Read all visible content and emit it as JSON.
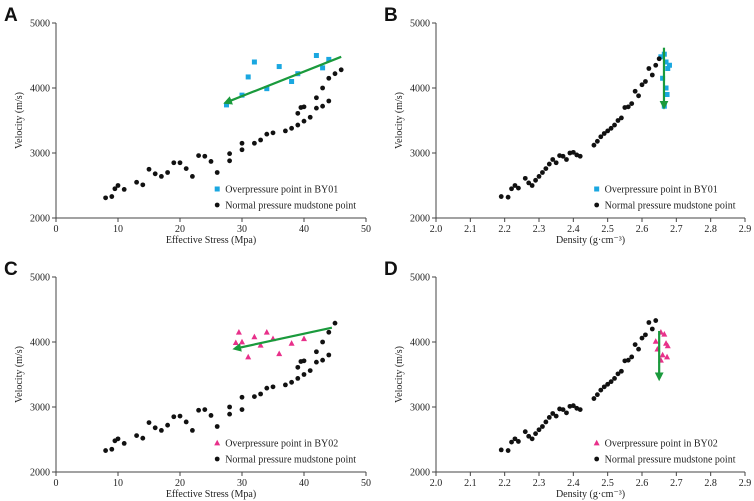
{
  "chart_data": [
    {
      "panel": "A",
      "type": "scatter",
      "xlabel": "Effective Stress (Mpa)",
      "ylabel": "Velocity (m/s)",
      "xlim": [
        0,
        50
      ],
      "ylim": [
        2000,
        5000
      ],
      "xticks": [
        "0",
        "10",
        "20",
        "30",
        "40",
        "50"
      ],
      "yticks": [
        "2000",
        "3000",
        "4000",
        "5000"
      ],
      "legend": "bottom-right",
      "arrow": {
        "from": [
          46,
          4480
        ],
        "to": [
          27.5,
          3780
        ],
        "color": "#1a9a3c"
      },
      "series": [
        {
          "name": "Overpressure point in BY01",
          "marker": "square",
          "color": "#1aa7e0",
          "x": [
            27.5,
            30,
            31,
            32,
            34,
            36,
            38,
            39,
            42,
            43,
            44
          ],
          "y": [
            3740,
            3890,
            4170,
            4400,
            3990,
            4330,
            4100,
            4220,
            4500,
            4310,
            4440
          ]
        },
        {
          "name": "Normal pressure mudstone point",
          "marker": "circle",
          "color": "#111111",
          "x": [
            8,
            9,
            9.5,
            10,
            11,
            13,
            14,
            15,
            16,
            17,
            18,
            19,
            20,
            21,
            22,
            23,
            24,
            25,
            26,
            28,
            28,
            30,
            30,
            32,
            33,
            34,
            35,
            37,
            38,
            39,
            39,
            39.5,
            40,
            40,
            41,
            42,
            42,
            43,
            43,
            44,
            44,
            45,
            46
          ],
          "y": [
            2310,
            2330,
            2450,
            2500,
            2440,
            2550,
            2510,
            2750,
            2680,
            2640,
            2700,
            2850,
            2850,
            2760,
            2640,
            2960,
            2950,
            2870,
            2700,
            2880,
            2990,
            3050,
            3150,
            3150,
            3200,
            3290,
            3310,
            3340,
            3380,
            3430,
            3610,
            3700,
            3710,
            3490,
            3550,
            3690,
            3850,
            3720,
            4000,
            3800,
            4150,
            4220,
            4280
          ]
        }
      ]
    },
    {
      "panel": "B",
      "type": "scatter",
      "xlabel": "Density (g·cm⁻³)",
      "ylabel": "Velocity (m/s)",
      "xlim": [
        2.0,
        2.9
      ],
      "ylim": [
        2000,
        5000
      ],
      "xticks": [
        "2.0",
        "2.1",
        "2.2",
        "2.3",
        "2.4",
        "2.5",
        "2.6",
        "2.7",
        "2.8",
        "2.9"
      ],
      "yticks": [
        "2000",
        "3000",
        "4000",
        "5000"
      ],
      "legend": "bottom-right",
      "arrow": {
        "from": [
          2.664,
          4620
        ],
        "to": [
          2.664,
          3720
        ],
        "color": "#1a9a3c"
      },
      "series": [
        {
          "name": "Overpressure point in BY01",
          "marker": "square",
          "color": "#1aa7e0",
          "x": [
            2.655,
            2.665,
            2.67,
            2.675,
            2.68,
            2.66,
            2.67,
            2.665,
            2.673
          ],
          "y": [
            4480,
            4520,
            4400,
            4300,
            4350,
            4150,
            4000,
            3720,
            3900
          ]
        },
        {
          "name": "Normal pressure mudstone point",
          "marker": "circle",
          "color": "#111111",
          "x": [
            2.19,
            2.21,
            2.22,
            2.23,
            2.24,
            2.26,
            2.27,
            2.28,
            2.29,
            2.3,
            2.31,
            2.32,
            2.33,
            2.34,
            2.35,
            2.36,
            2.37,
            2.38,
            2.39,
            2.4,
            2.41,
            2.42,
            2.46,
            2.47,
            2.48,
            2.49,
            2.5,
            2.51,
            2.52,
            2.53,
            2.54,
            2.55,
            2.56,
            2.57,
            2.58,
            2.59,
            2.6,
            2.61,
            2.62,
            2.63,
            2.64,
            2.65
          ],
          "y": [
            2330,
            2320,
            2450,
            2500,
            2460,
            2610,
            2540,
            2500,
            2580,
            2640,
            2700,
            2760,
            2830,
            2900,
            2850,
            2960,
            2950,
            2900,
            3000,
            3010,
            2970,
            2950,
            3120,
            3180,
            3250,
            3300,
            3340,
            3380,
            3430,
            3500,
            3540,
            3700,
            3710,
            3760,
            3950,
            3880,
            4050,
            4100,
            4300,
            4200,
            4350,
            4450
          ]
        }
      ]
    },
    {
      "panel": "C",
      "type": "scatter",
      "xlabel": "Effective Stress (Mpa)",
      "ylabel": "Velocity (m/s)",
      "xlim": [
        0,
        50
      ],
      "ylim": [
        2000,
        5000
      ],
      "xticks": [
        "0",
        "10",
        "20",
        "30",
        "40",
        "50"
      ],
      "yticks": [
        "2000",
        "3000",
        "4000",
        "5000"
      ],
      "legend": "bottom-right",
      "arrow": {
        "from": [
          44.5,
          4220
        ],
        "to": [
          29,
          3900
        ],
        "color": "#1a9a3c"
      },
      "series": [
        {
          "name": "Overpressure point in BY02",
          "marker": "triangle",
          "color": "#e8308a",
          "x": [
            29,
            29.5,
            30,
            31,
            32,
            33,
            34,
            35,
            36,
            38,
            40
          ],
          "y": [
            3990,
            4150,
            4000,
            3770,
            4080,
            3950,
            4150,
            4050,
            3820,
            3980,
            4050
          ]
        },
        {
          "name": "Normal pressure mudstone point",
          "marker": "circle",
          "color": "#111111",
          "x": [
            8,
            9,
            9.5,
            10,
            11,
            13,
            14,
            15,
            16,
            17,
            18,
            19,
            20,
            21,
            22,
            23,
            24,
            25,
            26,
            28,
            28,
            30,
            30,
            32,
            33,
            34,
            35,
            37,
            38,
            39,
            39,
            39.5,
            40,
            40,
            41,
            42,
            42,
            43,
            43,
            44,
            44,
            45
          ],
          "y": [
            2330,
            2350,
            2480,
            2510,
            2440,
            2560,
            2520,
            2760,
            2680,
            2640,
            2720,
            2850,
            2860,
            2770,
            2640,
            2950,
            2960,
            2870,
            2700,
            2890,
            3000,
            2960,
            3150,
            3160,
            3200,
            3290,
            3310,
            3340,
            3380,
            3440,
            3610,
            3700,
            3710,
            3500,
            3560,
            3690,
            3850,
            3720,
            4000,
            3800,
            4150,
            4290
          ]
        }
      ]
    },
    {
      "panel": "D",
      "type": "scatter",
      "xlabel": "Density (g·cm⁻³)",
      "ylabel": "Velocity (m/s)",
      "xlim": [
        2.0,
        2.9
      ],
      "ylim": [
        2000,
        5000
      ],
      "xticks": [
        "2.0",
        "2.1",
        "2.2",
        "2.3",
        "2.4",
        "2.5",
        "2.6",
        "2.7",
        "2.8",
        "2.9"
      ],
      "yticks": [
        "2000",
        "3000",
        "4000",
        "5000"
      ],
      "legend": "bottom-right",
      "arrow": {
        "from": [
          2.65,
          4170
        ],
        "to": [
          2.65,
          3450
        ],
        "color": "#1a9a3c"
      },
      "series": [
        {
          "name": "Overpressure point in BY02",
          "marker": "triangle",
          "color": "#e8308a",
          "x": [
            2.64,
            2.655,
            2.665,
            2.67,
            2.675,
            2.645,
            2.66,
            2.673,
            2.655
          ],
          "y": [
            4010,
            4150,
            4120,
            3980,
            3940,
            3890,
            3800,
            3770,
            3720
          ]
        },
        {
          "name": "Normal pressure mudstone point",
          "marker": "circle",
          "color": "#111111",
          "x": [
            2.19,
            2.21,
            2.22,
            2.23,
            2.24,
            2.26,
            2.27,
            2.28,
            2.29,
            2.3,
            2.31,
            2.32,
            2.33,
            2.34,
            2.35,
            2.36,
            2.37,
            2.38,
            2.39,
            2.4,
            2.41,
            2.42,
            2.46,
            2.47,
            2.48,
            2.49,
            2.5,
            2.51,
            2.52,
            2.53,
            2.54,
            2.55,
            2.56,
            2.57,
            2.58,
            2.59,
            2.6,
            2.61,
            2.62,
            2.63,
            2.64
          ],
          "y": [
            2340,
            2330,
            2460,
            2510,
            2470,
            2620,
            2550,
            2510,
            2590,
            2650,
            2700,
            2770,
            2840,
            2900,
            2860,
            2970,
            2960,
            2910,
            3010,
            3020,
            2980,
            2960,
            3130,
            3190,
            3260,
            3310,
            3350,
            3390,
            3440,
            3510,
            3550,
            3710,
            3720,
            3770,
            3960,
            3890,
            4060,
            4110,
            4300,
            4200,
            4330
          ]
        }
      ]
    }
  ]
}
